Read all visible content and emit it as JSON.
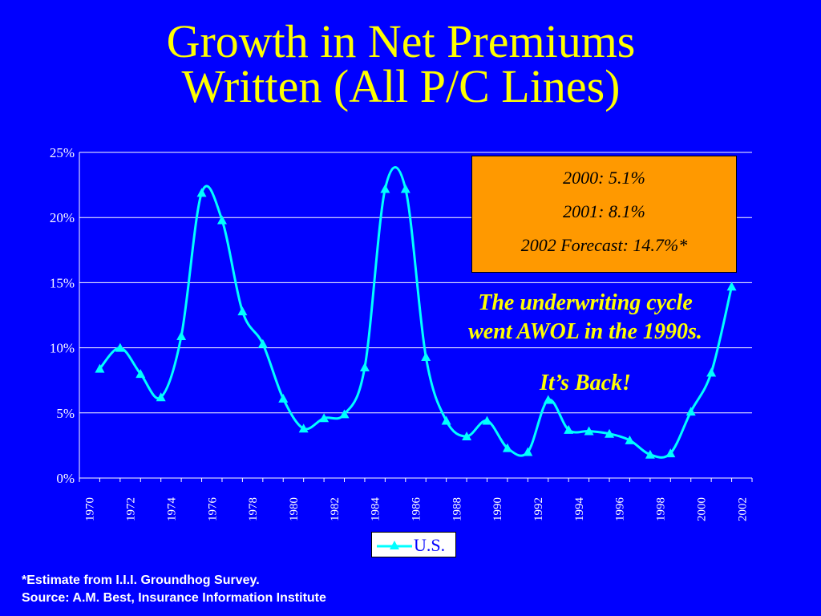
{
  "title_line1": "Growth in Net Premiums",
  "title_line2": "Written (All P/C Lines)",
  "callout": [
    "2000: 5.1%",
    "2001: 8.1%",
    "2002 Forecast: 14.7%*"
  ],
  "note_line1": "The underwriting cycle",
  "note_line2": "went AWOL in the 1990s.",
  "note_line3": "It’s Back!",
  "footnote": "*Estimate from I.I.I. Groundhog Survey.",
  "source": "Source:  A.M. Best, Insurance Information Institute",
  "colors": {
    "background": "#0000FF",
    "series": "#00FFFF",
    "title": "#FFFF00",
    "callout": "#FF9900"
  },
  "chart_data": {
    "type": "line",
    "title": "",
    "xlabel": "",
    "ylabel": "",
    "x_tick_labels": [
      "1970",
      "1972",
      "1974",
      "1976",
      "1978",
      "1980",
      "1982",
      "1984",
      "1986",
      "1988",
      "1990",
      "1992",
      "1994",
      "1996",
      "1998",
      "2000",
      "2002"
    ],
    "y_tick_labels": [
      "0%",
      "5%",
      "10%",
      "15%",
      "20%",
      "25%"
    ],
    "ylim": [
      0,
      25
    ],
    "grid": true,
    "legend": "bottom-center",
    "series": [
      {
        "name": "U.S.",
        "marker": "triangle",
        "x": [
          1971,
          1972,
          1973,
          1974,
          1975,
          1976,
          1977,
          1978,
          1979,
          1980,
          1981,
          1982,
          1983,
          1984,
          1985,
          1986,
          1987,
          1988,
          1989,
          1990,
          1991,
          1992,
          1993,
          1994,
          1995,
          1996,
          1997,
          1998,
          1999,
          2000,
          2001,
          2002
        ],
        "values": [
          8.4,
          10.0,
          8.0,
          6.2,
          10.9,
          21.9,
          19.8,
          12.8,
          10.3,
          6.1,
          3.8,
          4.6,
          4.9,
          8.5,
          22.2,
          22.2,
          9.3,
          4.4,
          3.2,
          4.4,
          2.3,
          2.0,
          6.0,
          3.7,
          3.6,
          3.4,
          2.9,
          1.8,
          1.9,
          5.1,
          8.1,
          14.7
        ]
      }
    ]
  }
}
